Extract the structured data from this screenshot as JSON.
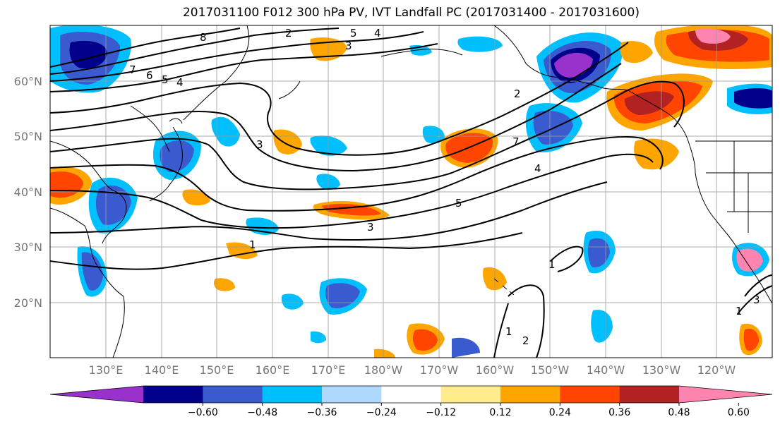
{
  "title": "2017031100 F012 300 hPa PV, IVT Landfall PC (2017031400 - 2017031600)",
  "lat_labels": [
    "60°N",
    "50°N",
    "40°N",
    "30°N",
    "20°N"
  ],
  "lon_labels": [
    "130°E",
    "140°E",
    "150°E",
    "160°E",
    "170°E",
    "180°W",
    "170°W",
    "160°W",
    "150°W",
    "140°W",
    "130°W",
    "120°W"
  ],
  "colorbar": {
    "colors": [
      "#9932cc",
      "#00008b",
      "#3a5bcf",
      "#00bfff",
      "#add8ff",
      "#ffffff",
      "#ffec8b",
      "#ffa500",
      "#ff4500",
      "#b22222",
      "#ff85b0"
    ],
    "tick_labels": [
      "−0.60",
      "−0.48",
      "−0.36",
      "−0.24",
      "−0.12",
      "0.12",
      "0.24",
      "0.36",
      "0.48",
      "0.60"
    ]
  },
  "contour_labels": [
    "8",
    "7",
    "6",
    "5",
    "4",
    "3",
    "2",
    "5",
    "4",
    "3",
    "2",
    "7",
    "4",
    "5",
    "3",
    "1",
    "1",
    "1",
    "2",
    "1",
    "3"
  ]
}
